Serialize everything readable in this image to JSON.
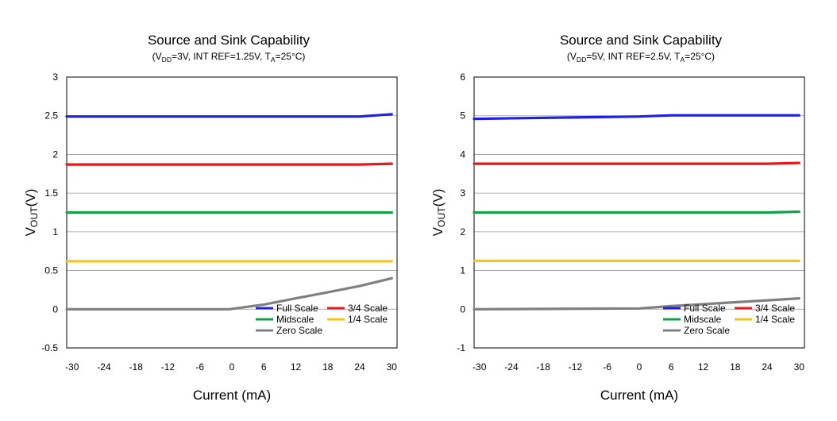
{
  "chart_data": [
    {
      "type": "line",
      "title": "Source and Sink Capability",
      "subtitle": {
        "a": "(V",
        "a_sub": "DD",
        "b": "=3V, INT REF=1.25V, T",
        "b_sub": "A",
        "c": "=25°C)"
      },
      "xlabel": "Current (mA)",
      "ylabel": {
        "main": "V",
        "sub": "OUT",
        "tail": "(V)"
      },
      "xlim": [
        -31,
        31
      ],
      "ylim": [
        -0.5,
        3
      ],
      "xticks": [
        -30,
        -24,
        -18,
        -12,
        -6,
        0,
        6,
        12,
        18,
        24,
        30
      ],
      "yticks": [
        -0.5,
        0,
        0.5,
        1,
        1.5,
        2,
        2.5,
        3
      ],
      "ytick_labels": [
        "-0.5",
        "0",
        "0.5",
        "1",
        "1.5",
        "2",
        "2.5",
        "3"
      ],
      "grid": "horizontal",
      "series": [
        {
          "name": "Full Scale",
          "color": "#1f1fe0",
          "x": [
            -31,
            0,
            24,
            30
          ],
          "y": [
            2.49,
            2.49,
            2.49,
            2.52
          ]
        },
        {
          "name": "3/4 Scale",
          "color": "#e41a1a",
          "x": [
            -31,
            0,
            24,
            30
          ],
          "y": [
            1.87,
            1.87,
            1.87,
            1.88
          ]
        },
        {
          "name": "Midscale",
          "color": "#14a04a",
          "x": [
            -31,
            0,
            30
          ],
          "y": [
            1.25,
            1.25,
            1.25
          ]
        },
        {
          "name": "1/4 Scale",
          "color": "#f5c518",
          "x": [
            -31,
            0,
            30
          ],
          "y": [
            0.62,
            0.62,
            0.62
          ]
        },
        {
          "name": "Zero Scale",
          "color": "#808080",
          "x": [
            -31,
            -0.5,
            6,
            12,
            18,
            24,
            30
          ],
          "y": [
            0.0,
            0.0,
            0.06,
            0.14,
            0.22,
            0.3,
            0.4
          ]
        }
      ],
      "legend": {
        "placement": "bottom-right",
        "items": [
          "Full Scale",
          "3/4 Scale",
          "Midscale",
          "1/4 Scale",
          "Zero Scale"
        ]
      }
    },
    {
      "type": "line",
      "title": "Source and Sink Capability",
      "subtitle": {
        "a": "(V",
        "a_sub": "DD",
        "b": "=5V, INT REF=2.5V, T",
        "b_sub": "A",
        "c": "=25°C)"
      },
      "xlabel": "Current (mA)",
      "ylabel": {
        "main": "V",
        "sub": "OUT",
        "tail": "(V)"
      },
      "xlim": [
        -31,
        31
      ],
      "ylim": [
        -1,
        6
      ],
      "xticks": [
        -30,
        -24,
        -18,
        -12,
        -6,
        0,
        6,
        12,
        18,
        24,
        30
      ],
      "yticks": [
        -1,
        0,
        1,
        2,
        3,
        4,
        5,
        6
      ],
      "ytick_labels": [
        "-1",
        "0",
        "1",
        "2",
        "3",
        "4",
        "5",
        "6"
      ],
      "grid": "horizontal",
      "series": [
        {
          "name": "Full Scale",
          "color": "#1f1fe0",
          "x": [
            -31,
            0,
            6,
            30
          ],
          "y": [
            4.92,
            4.98,
            5.01,
            5.01
          ]
        },
        {
          "name": "3/4 Scale",
          "color": "#e41a1a",
          "x": [
            -31,
            0,
            24,
            30
          ],
          "y": [
            3.76,
            3.76,
            3.76,
            3.78
          ]
        },
        {
          "name": "Midscale",
          "color": "#14a04a",
          "x": [
            -31,
            0,
            24,
            30
          ],
          "y": [
            2.5,
            2.5,
            2.5,
            2.52
          ]
        },
        {
          "name": "1/4 Scale",
          "color": "#f5c518",
          "x": [
            -31,
            0,
            30
          ],
          "y": [
            1.25,
            1.25,
            1.25
          ]
        },
        {
          "name": "Zero Scale",
          "color": "#808080",
          "x": [
            -31,
            0,
            6,
            12,
            18,
            24,
            30
          ],
          "y": [
            0.0,
            0.02,
            0.08,
            0.13,
            0.18,
            0.23,
            0.28
          ]
        }
      ],
      "legend": {
        "placement": "bottom-right",
        "items": [
          "Full Scale",
          "3/4 Scale",
          "Midscale",
          "1/4 Scale",
          "Zero Scale"
        ]
      }
    }
  ]
}
